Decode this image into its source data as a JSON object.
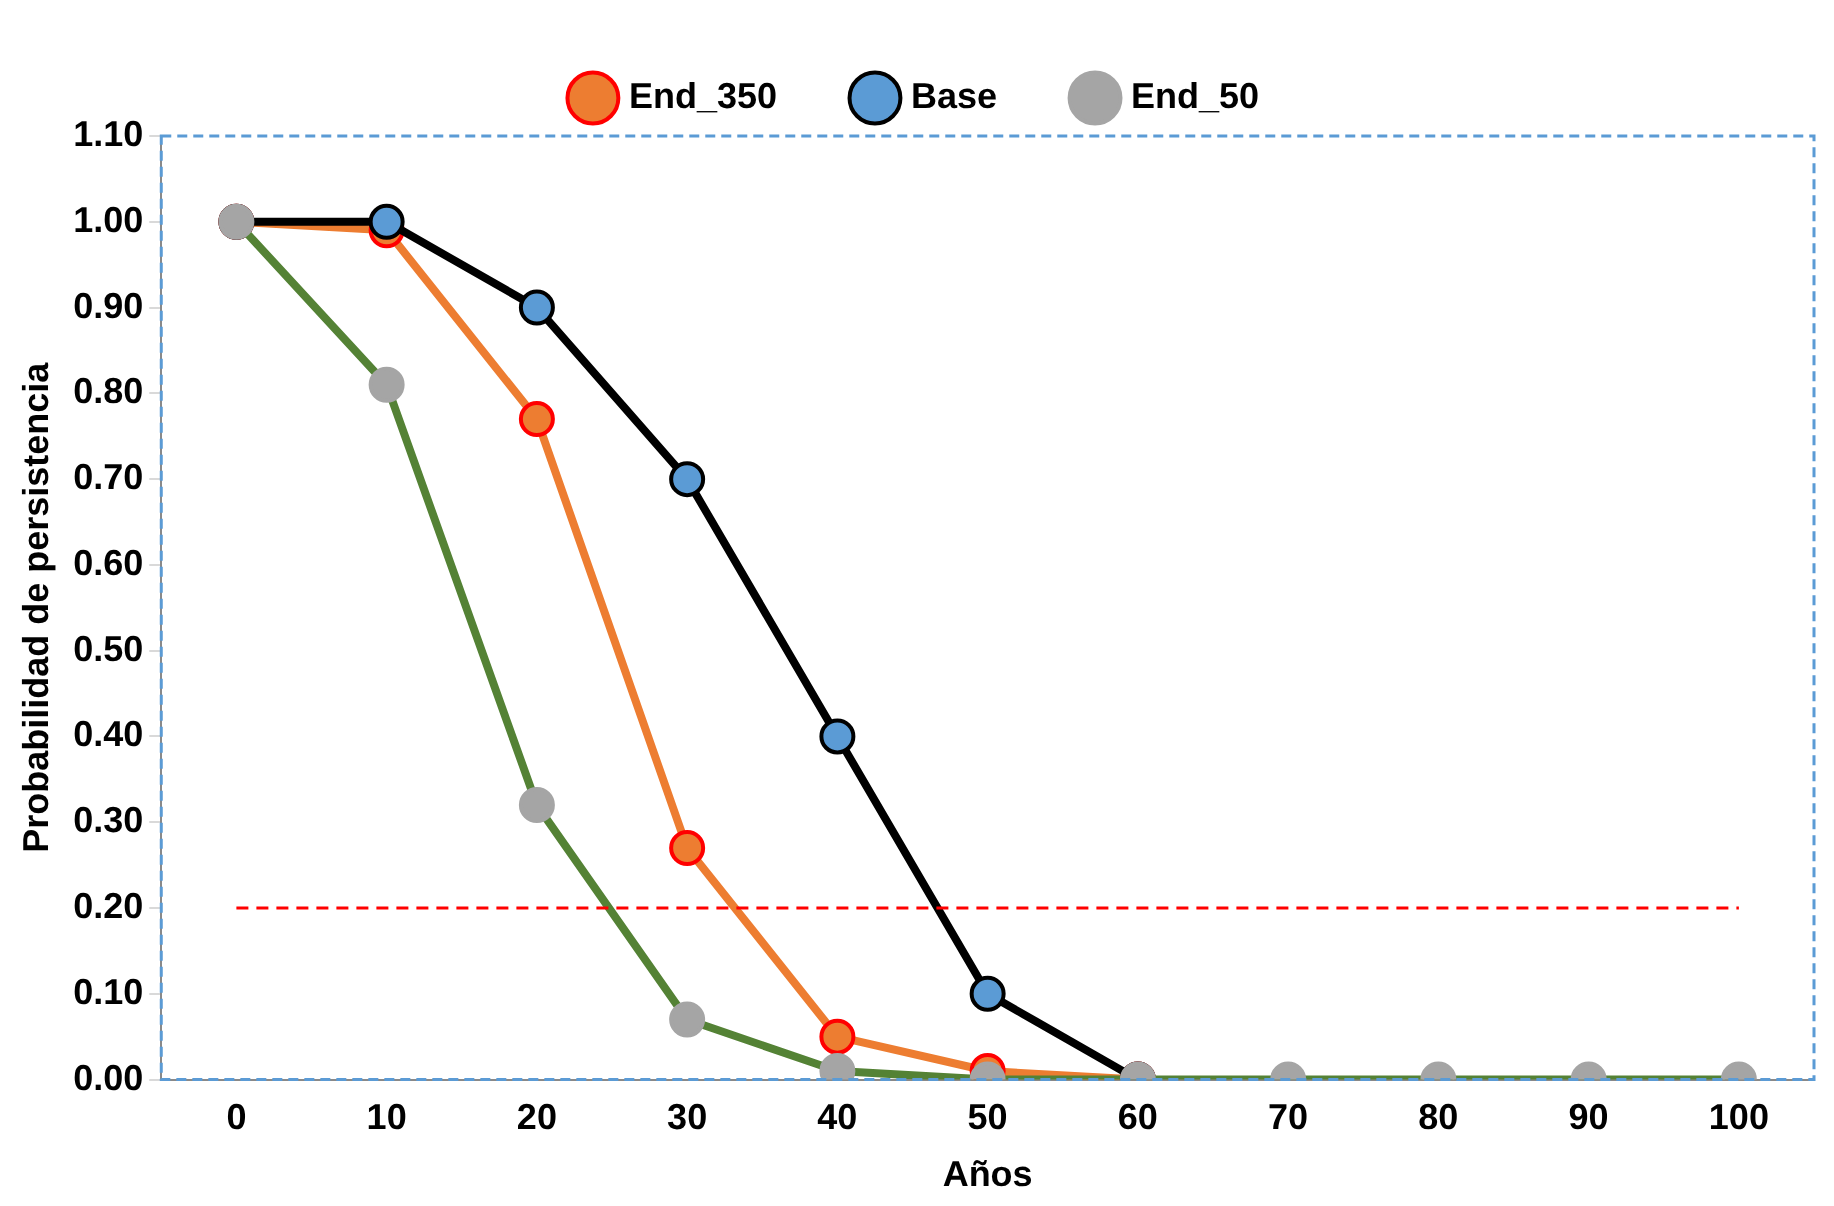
{
  "chart_data": {
    "type": "line",
    "xlabel": "Años",
    "ylabel": "Probabilidad de persistencia",
    "categories": [
      "0",
      "10",
      "20",
      "30",
      "40",
      "50",
      "60",
      "70",
      "80",
      "90",
      "100"
    ],
    "ylim": [
      0,
      1.1
    ],
    "yticks": [
      {
        "value": 0,
        "label": "0.00"
      },
      {
        "value": 0.1,
        "label": "0.10"
      },
      {
        "value": 0.2,
        "label": "0.20"
      },
      {
        "value": 0.3,
        "label": "0.30"
      },
      {
        "value": 0.4,
        "label": "0.40"
      },
      {
        "value": 0.5,
        "label": "0.50"
      },
      {
        "value": 0.6,
        "label": "0.60"
      },
      {
        "value": 0.7,
        "label": "0.70"
      },
      {
        "value": 0.8,
        "label": "0.80"
      },
      {
        "value": 0.9,
        "label": "0.90"
      },
      {
        "value": 1,
        "label": "1.00"
      },
      {
        "value": 1.1,
        "label": "1.10"
      }
    ],
    "series": [
      {
        "name": "End_350",
        "color": "#ed7d31",
        "values": [
          1,
          0.99,
          0.77,
          0.27,
          0.05,
          0.01,
          0,
          null,
          null,
          null,
          null
        ]
      },
      {
        "name": "Base",
        "color": "#000000",
        "values": [
          1,
          1,
          0.9,
          0.7,
          0.4,
          0.1,
          0,
          null,
          null,
          null,
          null
        ]
      },
      {
        "name": "End_50",
        "color": "#548235",
        "values": [
          1,
          0.81,
          0.32,
          0.07,
          0.01,
          0,
          0,
          0,
          0,
          0,
          0
        ]
      }
    ],
    "ref_lines": [
      {
        "axis": "y",
        "value": 0.2,
        "color": "#ff0000",
        "line_style": "dashed"
      }
    ],
    "grid": false,
    "legend": "top",
    "marker": "circle",
    "line_style": "solid"
  }
}
